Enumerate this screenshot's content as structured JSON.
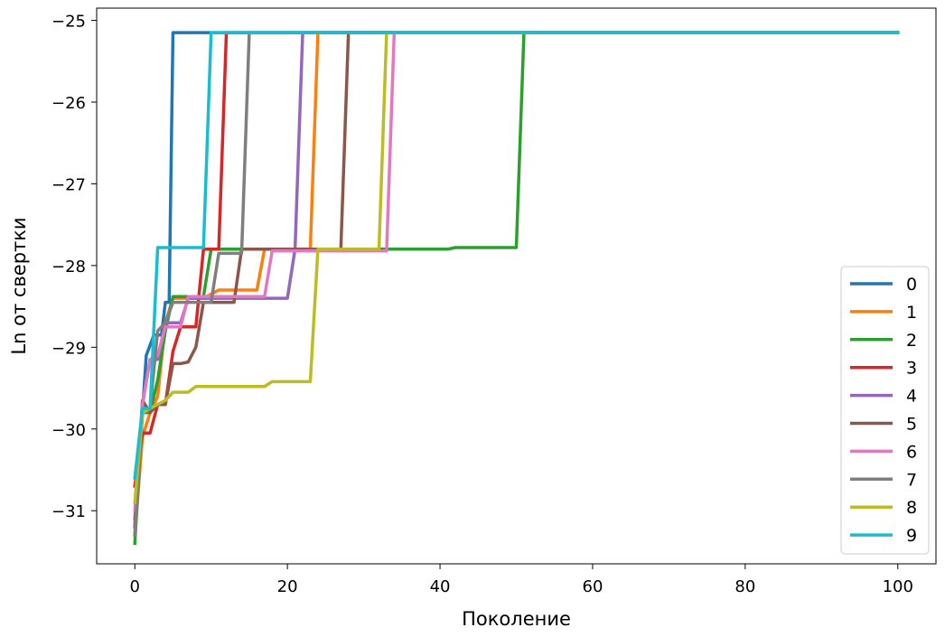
{
  "chart_data": {
    "type": "line",
    "xlabel": "Поколение",
    "ylabel": "Ln от свертки",
    "xlim": [
      -5,
      105
    ],
    "ylim": [
      -31.65,
      -24.85
    ],
    "xticks": [
      0,
      20,
      40,
      60,
      80,
      100
    ],
    "xtick_labels": [
      "0",
      "20",
      "40",
      "60",
      "80",
      "100"
    ],
    "yticks": [
      -31,
      -30,
      -29,
      -28,
      -27,
      -26,
      -25
    ],
    "ytick_labels": [
      "−31",
      "−30",
      "−29",
      "−28",
      "−27",
      "−26",
      "−25"
    ],
    "grid": false,
    "legend_position": "lower right",
    "series": [
      {
        "name": "0",
        "color": "#1f77b4",
        "points": [
          [
            0,
            -31.2
          ],
          [
            1,
            -29.8
          ],
          [
            1.5,
            -29.1
          ],
          [
            2.5,
            -28.85
          ],
          [
            3.5,
            -28.85
          ],
          [
            4,
            -28.45
          ],
          [
            4.5,
            -28.45
          ],
          [
            5,
            -25.15
          ],
          [
            100,
            -25.15
          ]
        ]
      },
      {
        "name": "1",
        "color": "#ff7f0e",
        "points": [
          [
            0,
            -31.3
          ],
          [
            1,
            -30.1
          ],
          [
            2,
            -29.8
          ],
          [
            3,
            -29.6
          ],
          [
            4,
            -28.7
          ],
          [
            5,
            -28.4
          ],
          [
            9,
            -28.4
          ],
          [
            11,
            -28.3
          ],
          [
            16,
            -28.3
          ],
          [
            17,
            -27.8
          ],
          [
            23,
            -27.8
          ],
          [
            24,
            -25.15
          ],
          [
            100,
            -25.15
          ]
        ]
      },
      {
        "name": "2",
        "color": "#2ca02c",
        "points": [
          [
            0,
            -31.4
          ],
          [
            1,
            -29.8
          ],
          [
            2,
            -29.8
          ],
          [
            3,
            -29.4
          ],
          [
            4,
            -28.8
          ],
          [
            5,
            -28.38
          ],
          [
            9,
            -28.38
          ],
          [
            10,
            -27.8
          ],
          [
            41,
            -27.8
          ],
          [
            42,
            -27.78
          ],
          [
            50,
            -27.78
          ],
          [
            51,
            -25.15
          ],
          [
            100,
            -25.15
          ]
        ]
      },
      {
        "name": "3",
        "color": "#d62728",
        "points": [
          [
            0,
            -30.7
          ],
          [
            1,
            -30.05
          ],
          [
            2,
            -30.05
          ],
          [
            3,
            -29.7
          ],
          [
            4,
            -29.7
          ],
          [
            5,
            -29.05
          ],
          [
            6,
            -28.75
          ],
          [
            8,
            -28.75
          ],
          [
            9,
            -27.8
          ],
          [
            11,
            -27.8
          ],
          [
            12,
            -25.15
          ],
          [
            100,
            -25.15
          ]
        ]
      },
      {
        "name": "4",
        "color": "#9467bd",
        "points": [
          [
            0,
            -31.1
          ],
          [
            1,
            -29.7
          ],
          [
            2,
            -29.15
          ],
          [
            3,
            -29.15
          ],
          [
            4,
            -28.7
          ],
          [
            6,
            -28.7
          ],
          [
            7,
            -28.4
          ],
          [
            20,
            -28.4
          ],
          [
            21,
            -27.8
          ],
          [
            22,
            -25.15
          ],
          [
            100,
            -25.15
          ]
        ]
      },
      {
        "name": "5",
        "color": "#8c564b",
        "points": [
          [
            0,
            -31.2
          ],
          [
            1,
            -29.65
          ],
          [
            2,
            -29.8
          ],
          [
            3,
            -29.7
          ],
          [
            4,
            -29.7
          ],
          [
            5,
            -29.2
          ],
          [
            6,
            -29.2
          ],
          [
            7,
            -29.18
          ],
          [
            8,
            -29.0
          ],
          [
            9,
            -28.45
          ],
          [
            13,
            -28.45
          ],
          [
            14,
            -27.8
          ],
          [
            27,
            -27.8
          ],
          [
            28,
            -25.15
          ],
          [
            100,
            -25.15
          ]
        ]
      },
      {
        "name": "6",
        "color": "#e377c2",
        "points": [
          [
            0,
            -31.0
          ],
          [
            1,
            -29.7
          ],
          [
            2,
            -29.15
          ],
          [
            3,
            -29.1
          ],
          [
            4,
            -28.75
          ],
          [
            6,
            -28.75
          ],
          [
            7,
            -28.38
          ],
          [
            17,
            -28.38
          ],
          [
            18,
            -27.82
          ],
          [
            33,
            -27.82
          ],
          [
            34,
            -25.15
          ],
          [
            100,
            -25.15
          ]
        ]
      },
      {
        "name": "7",
        "color": "#7f7f7f",
        "points": [
          [
            0,
            -31.3
          ],
          [
            1,
            -29.8
          ],
          [
            2,
            -29.75
          ],
          [
            3,
            -28.8
          ],
          [
            4,
            -28.7
          ],
          [
            5,
            -28.45
          ],
          [
            10,
            -28.45
          ],
          [
            11,
            -27.85
          ],
          [
            14,
            -27.85
          ],
          [
            15,
            -25.15
          ],
          [
            100,
            -25.15
          ]
        ]
      },
      {
        "name": "8",
        "color": "#bcbd22",
        "points": [
          [
            0,
            -30.9
          ],
          [
            1,
            -29.8
          ],
          [
            2,
            -29.75
          ],
          [
            3,
            -29.7
          ],
          [
            4,
            -29.65
          ],
          [
            5,
            -29.55
          ],
          [
            7,
            -29.55
          ],
          [
            8,
            -29.48
          ],
          [
            17,
            -29.48
          ],
          [
            18,
            -29.42
          ],
          [
            23,
            -29.42
          ],
          [
            24,
            -27.8
          ],
          [
            32,
            -27.8
          ],
          [
            33,
            -25.15
          ],
          [
            100,
            -25.15
          ]
        ]
      },
      {
        "name": "9",
        "color": "#17becf",
        "points": [
          [
            0,
            -30.6
          ],
          [
            1,
            -29.75
          ],
          [
            2,
            -29.75
          ],
          [
            3,
            -27.78
          ],
          [
            9,
            -27.78
          ],
          [
            10,
            -25.15
          ],
          [
            100,
            -25.15
          ]
        ]
      }
    ]
  }
}
